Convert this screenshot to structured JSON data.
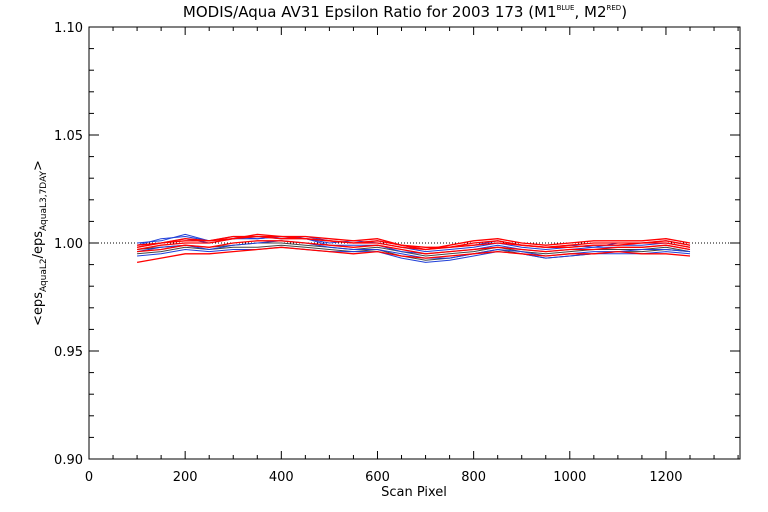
{
  "chart_data": {
    "type": "line",
    "title": {
      "main": "MODIS/Aqua AV31 Epsilon Ratio for 2003 173 (M1",
      "sup1": "BLUE",
      "mid": ", M2",
      "sup2": "RED",
      "end": ")"
    },
    "xlabel": "Scan Pixel",
    "ylabel": {
      "p1": "<eps",
      "s1": "AquaL2",
      "p2": "/eps",
      "s2": "AquaL3,7DAY",
      "p3": ">"
    },
    "xlim": [
      0,
      1354
    ],
    "ylim": [
      0.9,
      1.1
    ],
    "xticks": [
      "0",
      "200",
      "400",
      "600",
      "800",
      "1000",
      "1200"
    ],
    "yticks": [
      "0.90",
      "0.95",
      "1.00",
      "1.05",
      "1.10"
    ],
    "reference_line": 1.0,
    "colors": {
      "M1": "#1f3fd8",
      "M2": "#ff0000",
      "other": "#444444",
      "axes": "#000000"
    },
    "x": [
      100,
      150,
      200,
      250,
      300,
      350,
      400,
      450,
      500,
      550,
      600,
      650,
      700,
      750,
      800,
      850,
      900,
      950,
      1000,
      1050,
      1100,
      1150,
      1200,
      1250
    ],
    "series": [
      {
        "group": "M1",
        "values": [
          1.0,
          1.001,
          1.004,
          1.001,
          1.002,
          1.003,
          1.002,
          1.003,
          1.001,
          1.0,
          1.001,
          0.999,
          0.997,
          0.998,
          0.999,
          1.001,
          0.999,
          0.998,
          0.999,
          0.998,
          1.0,
          1.0,
          1.001,
          0.999
        ]
      },
      {
        "group": "M1",
        "values": [
          0.999,
          1.002,
          1.003,
          1.001,
          1.003,
          1.002,
          1.003,
          1.002,
          1.0,
          1.001,
          1.0,
          0.998,
          0.996,
          0.997,
          0.998,
          1.0,
          0.998,
          0.997,
          0.998,
          0.999,
          0.999,
          0.999,
          1.0,
          0.998
        ]
      },
      {
        "group": "M1",
        "values": [
          0.998,
          1.0,
          1.002,
          1.0,
          1.002,
          1.002,
          1.003,
          1.002,
          0.999,
          0.999,
          0.999,
          0.996,
          0.995,
          0.996,
          0.997,
          0.999,
          0.997,
          0.996,
          0.997,
          0.998,
          0.998,
          0.998,
          0.999,
          0.997
        ]
      },
      {
        "group": "M1",
        "values": [
          0.996,
          0.998,
          0.999,
          0.997,
          0.999,
          1.0,
          1.001,
          1.0,
          0.998,
          0.997,
          0.997,
          0.995,
          0.993,
          0.993,
          0.995,
          0.997,
          0.996,
          0.994,
          0.995,
          0.996,
          0.996,
          0.997,
          0.997,
          0.996
        ]
      },
      {
        "group": "M1",
        "values": [
          0.994,
          0.995,
          0.997,
          0.996,
          0.997,
          0.997,
          0.998,
          0.997,
          0.996,
          0.996,
          0.996,
          0.993,
          0.991,
          0.992,
          0.994,
          0.996,
          0.995,
          0.993,
          0.994,
          0.995,
          0.995,
          0.995,
          0.996,
          0.995
        ]
      },
      {
        "group": "M2",
        "values": [
          0.999,
          1.0,
          1.002,
          1.001,
          1.003,
          1.003,
          1.003,
          1.002,
          1.001,
          1.0,
          1.001,
          0.999,
          0.998,
          0.998,
          1.0,
          1.001,
          0.999,
          0.998,
          0.999,
          1.0,
          1.0,
          1.0,
          1.001,
          0.999
        ]
      },
      {
        "group": "M2",
        "values": [
          0.998,
          1.0,
          1.001,
          1.001,
          1.002,
          1.004,
          1.003,
          1.003,
          1.002,
          1.001,
          1.002,
          0.999,
          0.997,
          0.999,
          1.001,
          1.002,
          1.0,
          0.999,
          1.0,
          1.001,
          1.001,
          1.001,
          1.002,
          1.0
        ]
      },
      {
        "group": "M2",
        "values": [
          0.997,
          0.999,
          1.0,
          1.0,
          1.002,
          1.003,
          1.002,
          1.002,
          1.001,
          1.0,
          1.0,
          0.998,
          0.997,
          0.998,
          0.999,
          1.0,
          0.999,
          0.998,
          0.998,
          0.999,
          0.999,
          1.0,
          1.0,
          0.998
        ]
      },
      {
        "group": "M2",
        "values": [
          0.996,
          0.997,
          0.999,
          0.998,
          1.0,
          1.001,
          1.001,
          1.0,
          0.999,
          0.998,
          0.999,
          0.997,
          0.995,
          0.996,
          0.997,
          0.998,
          0.997,
          0.996,
          0.997,
          0.997,
          0.998,
          0.998,
          0.999,
          0.997
        ]
      },
      {
        "group": "M2",
        "values": [
          0.991,
          0.993,
          0.995,
          0.995,
          0.996,
          0.997,
          0.998,
          0.997,
          0.996,
          0.995,
          0.996,
          0.994,
          0.993,
          0.994,
          0.995,
          0.996,
          0.995,
          0.994,
          0.995,
          0.995,
          0.996,
          0.995,
          0.995,
          0.994
        ]
      },
      {
        "group": "other",
        "values": [
          0.997,
          0.998,
          0.999,
          0.998,
          0.999,
          1.0,
          1.0,
          0.999,
          0.998,
          0.997,
          0.998,
          0.996,
          0.994,
          0.995,
          0.996,
          0.998,
          0.996,
          0.995,
          0.996,
          0.997,
          0.997,
          0.997,
          0.998,
          0.996
        ]
      },
      {
        "group": "other",
        "values": [
          0.995,
          0.996,
          0.998,
          0.997,
          0.998,
          0.998,
          0.999,
          0.998,
          0.997,
          0.996,
          0.997,
          0.994,
          0.992,
          0.993,
          0.995,
          0.997,
          0.995,
          0.993,
          0.994,
          0.995,
          0.996,
          0.996,
          0.997,
          0.996
        ]
      }
    ]
  }
}
